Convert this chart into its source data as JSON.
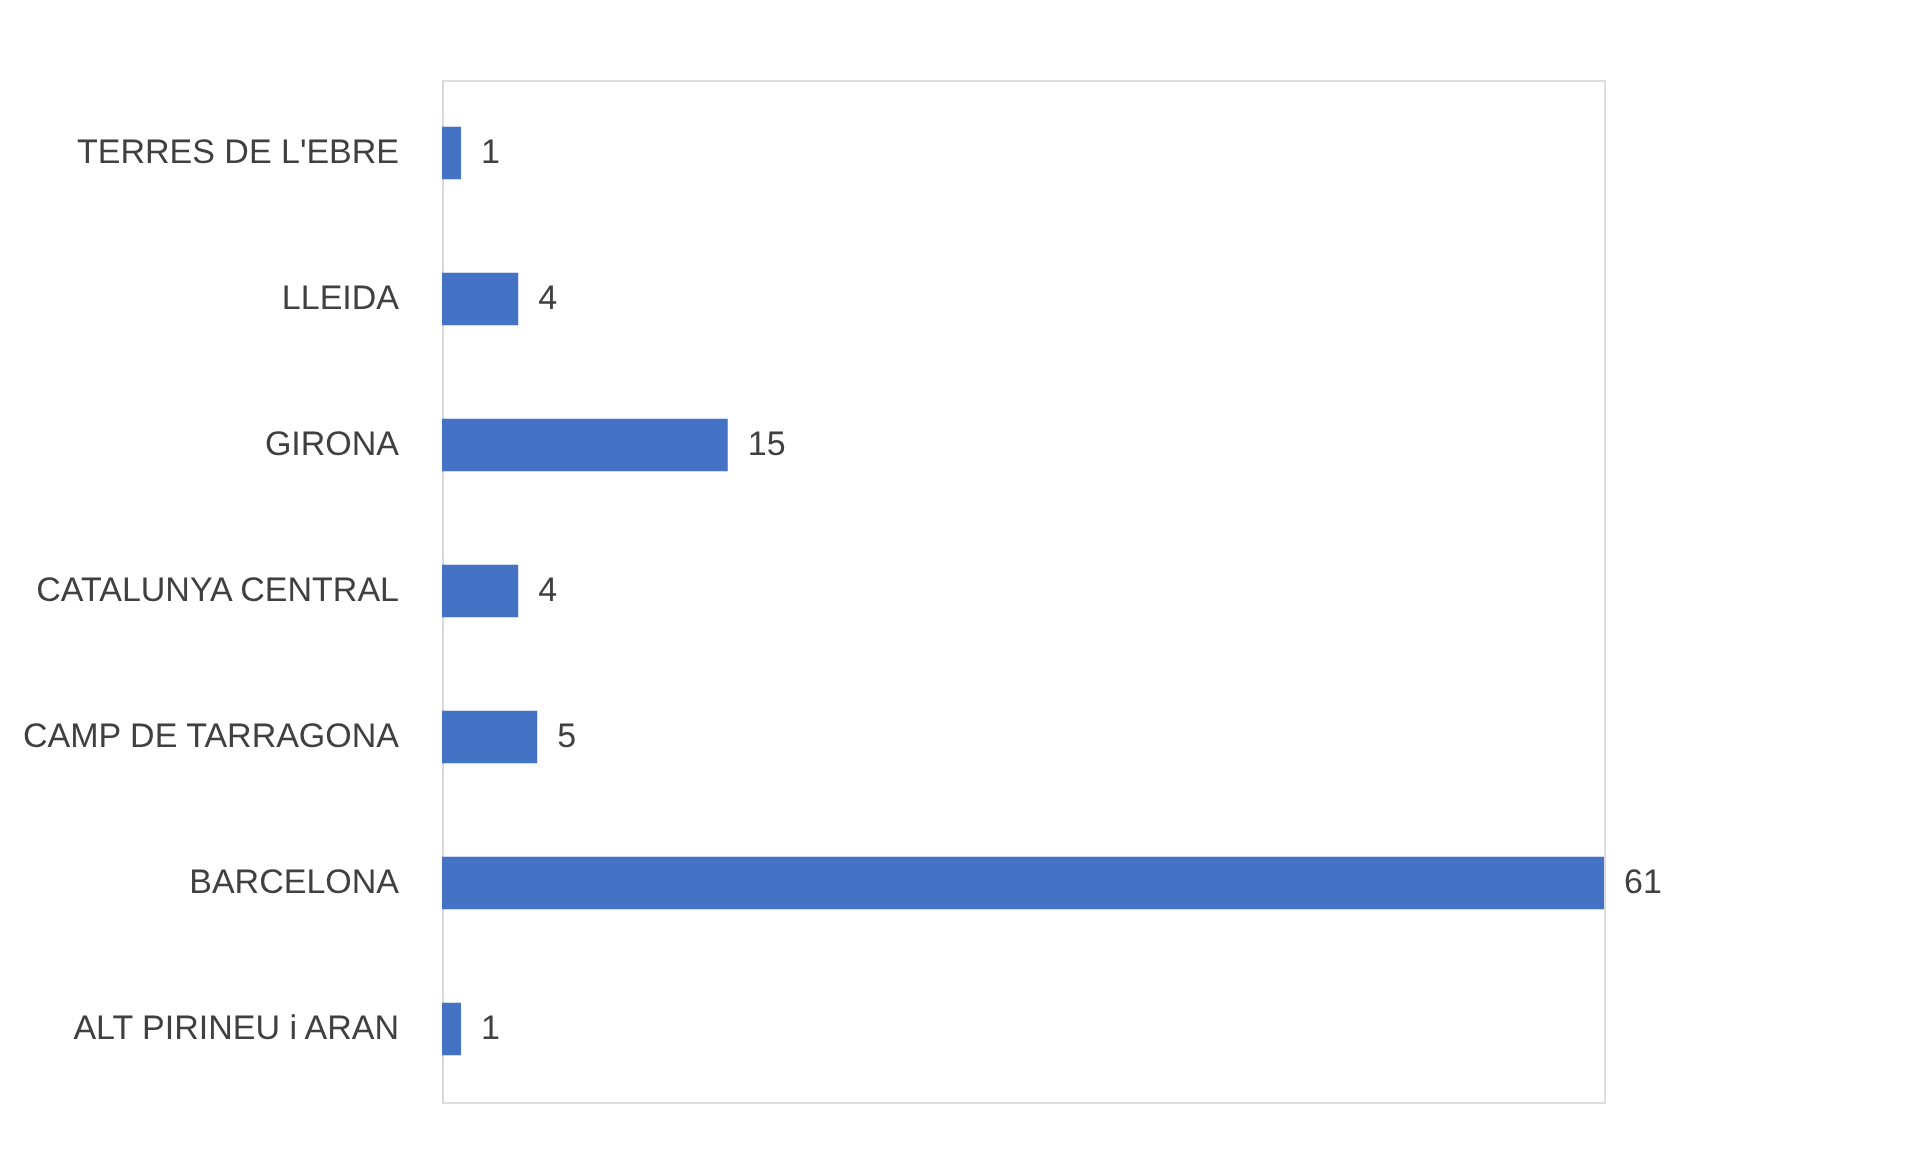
{
  "chart_data": {
    "type": "bar",
    "orientation": "horizontal",
    "categories": [
      "TERRES DE L'EBRE",
      "LLEIDA",
      "GIRONA",
      "CATALUNYA CENTRAL",
      "CAMP DE TARRAGONA",
      "BARCELONA",
      "ALT PIRINEU i ARAN"
    ],
    "values": [
      1,
      4,
      15,
      4,
      5,
      61,
      1
    ],
    "color": "#4472c4",
    "data_labels": true,
    "grid": false,
    "tick_labels": "y"
  }
}
